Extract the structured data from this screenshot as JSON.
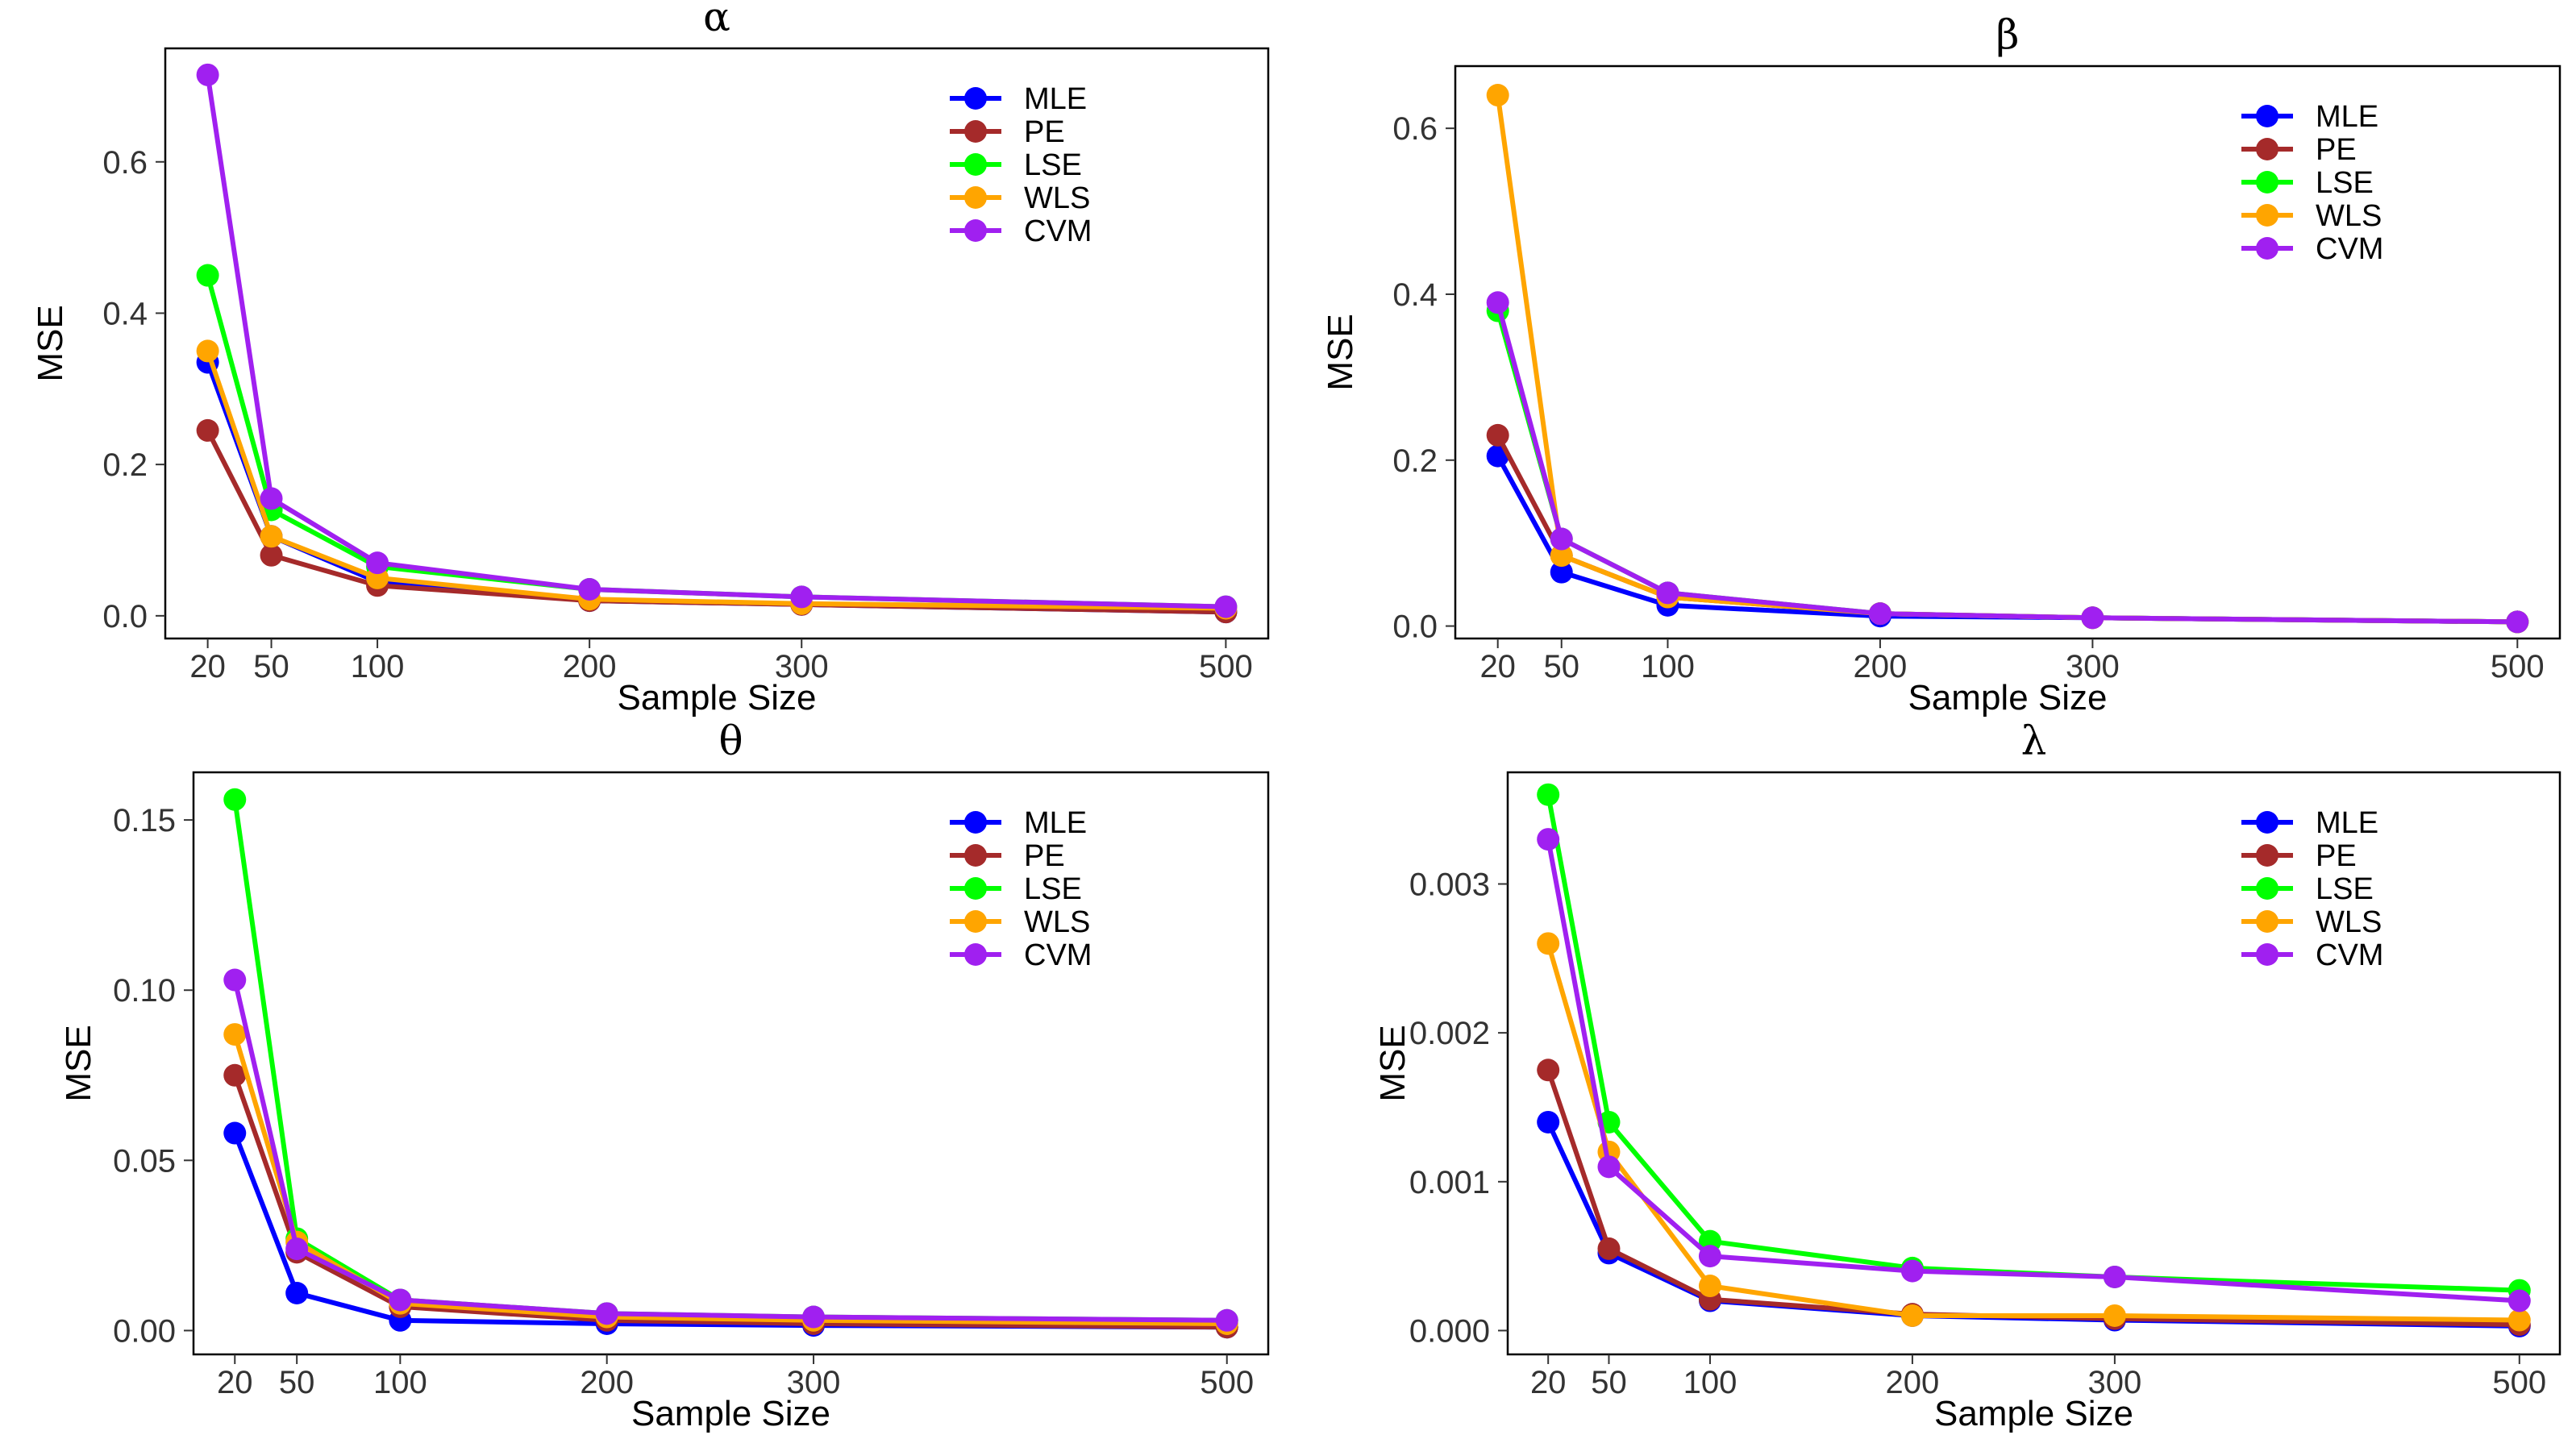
{
  "chart_data": [
    {
      "type": "line",
      "title": "α",
      "xlabel": "Sample Size",
      "ylabel": "MSE",
      "x": [
        20,
        50,
        100,
        200,
        300,
        500
      ],
      "xticks": [
        20,
        50,
        100,
        200,
        300,
        500
      ],
      "xlim": [
        0,
        520
      ],
      "yticks": [
        "0.0",
        "0.2",
        "0.4",
        "0.6"
      ],
      "ytick_values": [
        0,
        0.2,
        0.4,
        0.6
      ],
      "ylim": [
        -0.03,
        0.75
      ],
      "legend": "top-right",
      "series": [
        {
          "name": "MLE",
          "color": "#0000ff",
          "values": [
            0.335,
            0.105,
            0.045,
            0.02,
            0.015,
            0.005
          ]
        },
        {
          "name": "PE",
          "color": "#a52a2a",
          "values": [
            0.245,
            0.08,
            0.04,
            0.02,
            0.015,
            0.005
          ]
        },
        {
          "name": "LSE",
          "color": "#00ff00",
          "values": [
            0.45,
            0.14,
            0.065,
            0.035,
            0.025,
            0.012
          ]
        },
        {
          "name": "WLS",
          "color": "#ffa500",
          "values": [
            0.35,
            0.105,
            0.05,
            0.022,
            0.016,
            0.01
          ]
        },
        {
          "name": "CVM",
          "color": "#a020f0",
          "values": [
            0.715,
            0.155,
            0.07,
            0.035,
            0.025,
            0.012
          ]
        }
      ]
    },
    {
      "type": "line",
      "title": "β",
      "xlabel": "Sample Size",
      "ylabel": "MSE",
      "x": [
        20,
        50,
        100,
        200,
        300,
        500
      ],
      "xticks": [
        20,
        50,
        100,
        200,
        300,
        500
      ],
      "xlim": [
        0,
        520
      ],
      "yticks": [
        "0.0",
        "0.2",
        "0.4",
        "0.6"
      ],
      "ytick_values": [
        0,
        0.2,
        0.4,
        0.6
      ],
      "ylim": [
        -0.015,
        0.675
      ],
      "legend": "top-right",
      "series": [
        {
          "name": "MLE",
          "color": "#0000ff",
          "values": [
            0.205,
            0.065,
            0.025,
            0.012,
            0.01,
            0.005
          ]
        },
        {
          "name": "PE",
          "color": "#a52a2a",
          "values": [
            0.23,
            0.085,
            0.035,
            0.015,
            0.01,
            0.005
          ]
        },
        {
          "name": "LSE",
          "color": "#00ff00",
          "values": [
            0.38,
            0.105,
            0.04,
            0.015,
            0.01,
            0.005
          ]
        },
        {
          "name": "WLS",
          "color": "#ffa500",
          "values": [
            0.64,
            0.085,
            0.035,
            0.015,
            0.01,
            0.005
          ]
        },
        {
          "name": "CVM",
          "color": "#a020f0",
          "values": [
            0.39,
            0.105,
            0.04,
            0.015,
            0.01,
            0.005
          ]
        }
      ]
    },
    {
      "type": "line",
      "title": "θ",
      "xlabel": "Sample Size",
      "ylabel": "MSE",
      "x": [
        20,
        50,
        100,
        200,
        300,
        500
      ],
      "xticks": [
        20,
        50,
        100,
        200,
        300,
        500
      ],
      "xlim": [
        0,
        520
      ],
      "yticks": [
        "0.00",
        "0.05",
        "0.10",
        "0.15"
      ],
      "ytick_values": [
        0,
        0.05,
        0.1,
        0.15
      ],
      "ylim": [
        -0.007,
        0.164
      ],
      "legend": "top-right",
      "series": [
        {
          "name": "MLE",
          "color": "#0000ff",
          "values": [
            0.058,
            0.011,
            0.003,
            0.002,
            0.0015,
            0.001
          ]
        },
        {
          "name": "PE",
          "color": "#a52a2a",
          "values": [
            0.075,
            0.023,
            0.007,
            0.003,
            0.002,
            0.001
          ]
        },
        {
          "name": "LSE",
          "color": "#00ff00",
          "values": [
            0.156,
            0.027,
            0.009,
            0.005,
            0.004,
            0.003
          ]
        },
        {
          "name": "WLS",
          "color": "#ffa500",
          "values": [
            0.087,
            0.026,
            0.008,
            0.004,
            0.003,
            0.002
          ]
        },
        {
          "name": "CVM",
          "color": "#a020f0",
          "values": [
            0.103,
            0.024,
            0.009,
            0.005,
            0.004,
            0.003
          ]
        }
      ]
    },
    {
      "type": "line",
      "title": "λ",
      "xlabel": "Sample Size",
      "ylabel": "MSE",
      "x": [
        20,
        50,
        100,
        200,
        300,
        500
      ],
      "xticks": [
        20,
        50,
        100,
        200,
        300,
        500
      ],
      "xlim": [
        0,
        520
      ],
      "yticks": [
        "0.000",
        "0.001",
        "0.002",
        "0.003"
      ],
      "ytick_values": [
        0,
        0.001,
        0.002,
        0.003
      ],
      "ylim": [
        -0.00016,
        0.00375
      ],
      "legend": "top-right",
      "series": [
        {
          "name": "MLE",
          "color": "#0000ff",
          "values": [
            0.0014,
            0.00052,
            0.0002,
            0.0001,
            7e-05,
            3e-05
          ]
        },
        {
          "name": "PE",
          "color": "#a52a2a",
          "values": [
            0.00175,
            0.00055,
            0.00021,
            0.00011,
            8e-05,
            4e-05
          ]
        },
        {
          "name": "LSE",
          "color": "#00ff00",
          "values": [
            0.0036,
            0.0014,
            0.0006,
            0.00042,
            0.00036,
            0.00027
          ]
        },
        {
          "name": "WLS",
          "color": "#ffa500",
          "values": [
            0.0026,
            0.0012,
            0.0003,
            0.0001,
            0.0001,
            7e-05
          ]
        },
        {
          "name": "CVM",
          "color": "#a020f0",
          "values": [
            0.0033,
            0.0011,
            0.0005,
            0.0004,
            0.00036,
            0.0002
          ]
        }
      ]
    }
  ]
}
